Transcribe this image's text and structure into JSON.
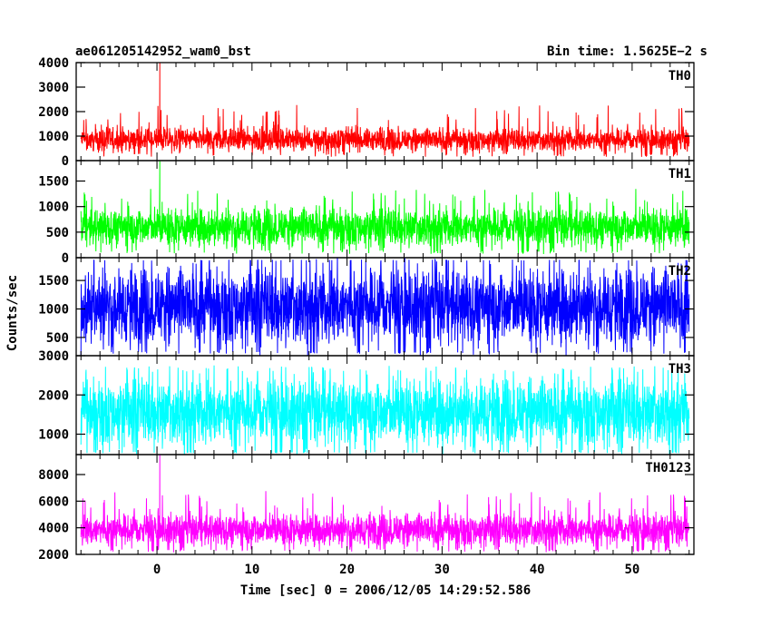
{
  "header": {
    "obs_id": "ae061205142952_wam0_bst",
    "bin_time": "Bin time: 1.5625E−2 s"
  },
  "axes": {
    "ylabel": "Counts/sec",
    "xlabel": "Time [sec] 0 = 2006/12/05 14:29:52.586"
  },
  "colors": {
    "TH0": "#ff0000",
    "TH1": "#00ff00",
    "TH2": "#0000ff",
    "TH3": "#00ffff",
    "TH0123": "#ff00ff"
  },
  "chart_data": {
    "type": "line",
    "x": {
      "range": [
        -8.5,
        56.5
      ],
      "ticks": [
        0,
        10,
        20,
        30,
        40,
        50
      ],
      "step": 0.015625,
      "data_start": -8.0,
      "data_end": 56.0
    },
    "grid": false,
    "panels": [
      {
        "name": "TH0",
        "ylim": [
          0,
          4000
        ],
        "ticks": [
          0,
          1000,
          2000,
          3000,
          4000
        ],
        "typical_range": [
          300,
          1400
        ],
        "peak": {
          "x": 0.3,
          "y": 4000
        }
      },
      {
        "name": "TH1",
        "ylim": [
          0,
          1900
        ],
        "ticks": [
          0,
          500,
          1000,
          1500
        ],
        "typical_range": [
          150,
          1050
        ],
        "peak": {
          "x": 0.3,
          "y": 1900
        }
      },
      {
        "name": "TH2",
        "ylim": [
          180,
          1900
        ],
        "ticks": [
          500,
          1000,
          1500
        ],
        "typical_range": [
          250,
          1850
        ],
        "peak": null
      },
      {
        "name": "TH3",
        "ylim": [
          480,
          3000
        ],
        "ticks": [
          1000,
          2000,
          3000
        ],
        "typical_range": [
          550,
          2600
        ],
        "peak": null
      },
      {
        "name": "TH0123",
        "ylim": [
          2000,
          9500
        ],
        "ticks": [
          2000,
          4000,
          6000,
          8000
        ],
        "typical_range": [
          2400,
          5300
        ],
        "peak": {
          "x": 0.3,
          "y": 9500
        }
      }
    ]
  }
}
